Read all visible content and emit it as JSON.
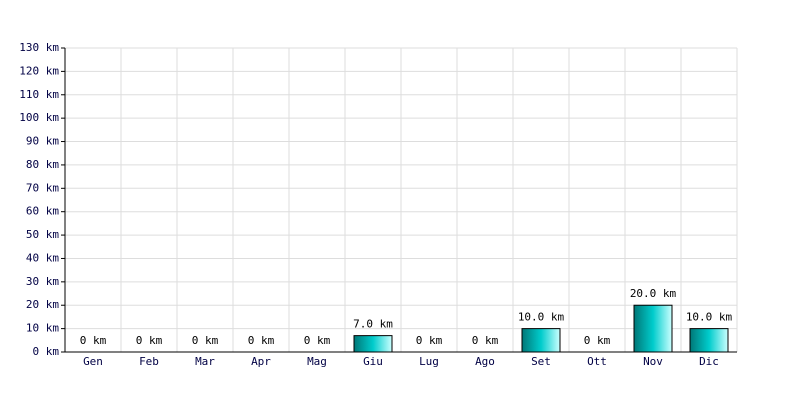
{
  "chart_data": {
    "type": "bar",
    "categories": [
      "Gen",
      "Feb",
      "Mar",
      "Apr",
      "Mag",
      "Giu",
      "Lug",
      "Ago",
      "Set",
      "Ott",
      "Nov",
      "Dic"
    ],
    "values": [
      0,
      0,
      0,
      0,
      0,
      7,
      0,
      0,
      10,
      0,
      20,
      10
    ],
    "value_labels": [
      "0 km",
      "0 km",
      "0 km",
      "0 km",
      "0 km",
      "7.0 km",
      "0 km",
      "0 km",
      "10.0 km",
      "0 km",
      "20.0 km",
      "10.0 km"
    ],
    "color": "#00cccc",
    "ylim": [
      0,
      130
    ],
    "yticks": [
      {
        "value": 0,
        "label": "0 km"
      },
      {
        "value": 10,
        "label": "10 km"
      },
      {
        "value": 20,
        "label": "20 km"
      },
      {
        "value": 30,
        "label": "30 km"
      },
      {
        "value": 40,
        "label": "40 km"
      },
      {
        "value": 50,
        "label": "50 km"
      },
      {
        "value": 60,
        "label": "60 km"
      },
      {
        "value": 70,
        "label": "70 km"
      },
      {
        "value": 80,
        "label": "80 km"
      },
      {
        "value": 90,
        "label": "90 km"
      },
      {
        "value": 100,
        "label": "100 km"
      },
      {
        "value": 110,
        "label": "110 km"
      },
      {
        "value": 120,
        "label": "120 km"
      },
      {
        "value": 130,
        "label": "130 km"
      }
    ],
    "grid": true
  }
}
